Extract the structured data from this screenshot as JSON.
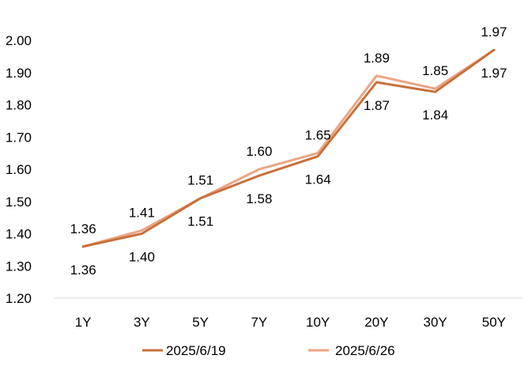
{
  "chart_data": {
    "type": "line",
    "categories": [
      "1Y",
      "3Y",
      "5Y",
      "7Y",
      "10Y",
      "20Y",
      "30Y",
      "50Y"
    ],
    "series": [
      {
        "name": "2025/6/19",
        "color": "#C8703A",
        "values": [
          1.36,
          1.4,
          1.51,
          1.58,
          1.64,
          1.87,
          1.84,
          1.97
        ],
        "labels": [
          "1.36",
          "1.40",
          "1.51",
          "1.58",
          "1.64",
          "1.87",
          "1.84",
          "1.97"
        ],
        "label_position": "below"
      },
      {
        "name": "2025/6/26",
        "color": "#EBA585",
        "values": [
          1.36,
          1.41,
          1.51,
          1.6,
          1.65,
          1.89,
          1.85,
          1.97
        ],
        "labels": [
          "1.36",
          "1.41",
          "1.51",
          "1.60",
          "1.65",
          "1.89",
          "1.85",
          "1.97"
        ],
        "label_position": "above"
      }
    ],
    "ylim": [
      1.2,
      2.0
    ],
    "yticks": [
      "1.20",
      "1.30",
      "1.40",
      "1.50",
      "1.60",
      "1.70",
      "1.80",
      "1.90",
      "2.00"
    ],
    "title": "",
    "xlabel": "",
    "ylabel": "",
    "grid": false,
    "legend_position": "bottom"
  }
}
